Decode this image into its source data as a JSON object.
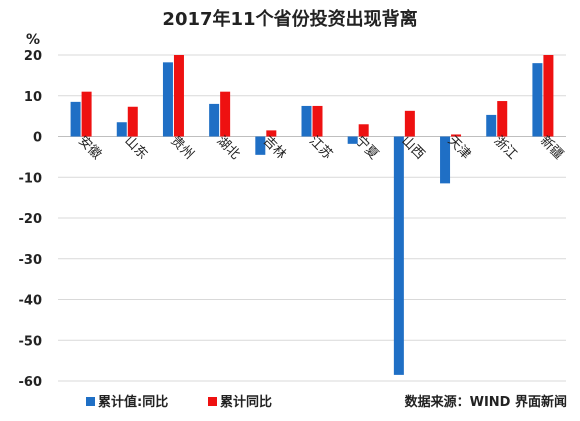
{
  "chart_data": {
    "type": "bar",
    "title": "2017年11个省份投资出现背离",
    "ylabel": "%",
    "ylim": [
      -60,
      20
    ],
    "yticks": [
      20,
      10,
      0,
      -10,
      -20,
      -30,
      -40,
      -50,
      -60
    ],
    "grid": true,
    "categories": [
      "安徽",
      "山东",
      "贵州",
      "湖北",
      "吉林",
      "江苏",
      "宁夏",
      "山西",
      "天津",
      "浙江",
      "新疆"
    ],
    "series": [
      {
        "name": "累计值:同比",
        "color": "#1f6fc5",
        "values": [
          8.5,
          3.5,
          18.2,
          8.0,
          -4.5,
          7.5,
          -1.8,
          -58.5,
          -11.5,
          5.3,
          18.0
        ]
      },
      {
        "name": "累计同比",
        "color": "#ee1111",
        "values": [
          11.0,
          7.3,
          20.0,
          11.0,
          1.5,
          7.5,
          3.0,
          6.3,
          0.5,
          8.7,
          20.0
        ]
      }
    ],
    "legend_position": "bottom-left",
    "source": "数据来源：WIND 界面新闻"
  }
}
